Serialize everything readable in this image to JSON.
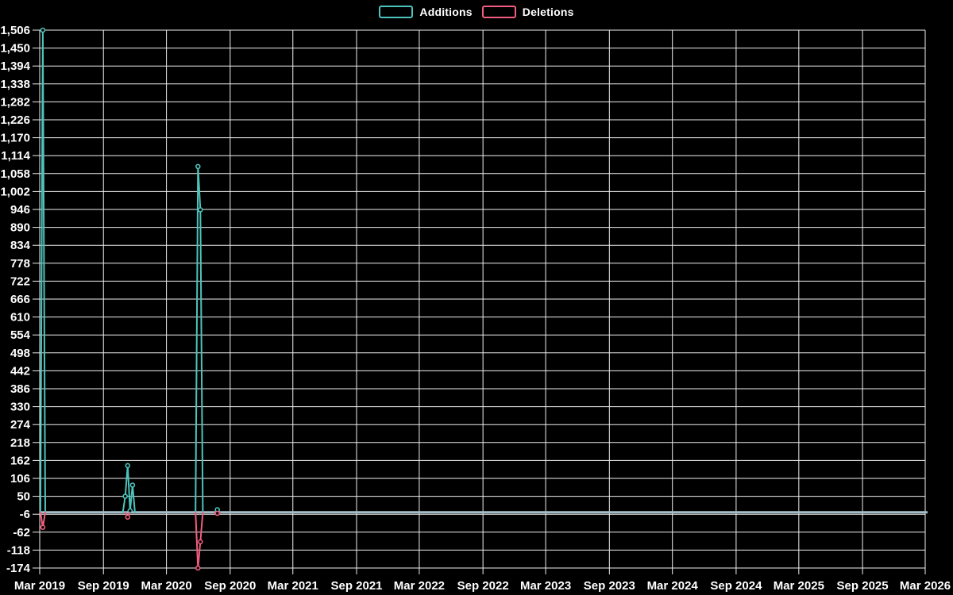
{
  "chart_data": {
    "type": "line",
    "title": "",
    "background": "#000000",
    "grid_color": "#EFEFEF",
    "text_color": "#FFFFFF",
    "zero_line_color": "#A4BFC8",
    "legend_position": "top-center",
    "x_axis": {
      "start_date": "2019-03-01",
      "end_date": "2026-03-01",
      "ticks": [
        {
          "label": "Mar 2019",
          "date": "2019-03-01"
        },
        {
          "label": "Sep 2019",
          "date": "2019-09-01"
        },
        {
          "label": "Mar 2020",
          "date": "2020-03-01"
        },
        {
          "label": "Sep 2020",
          "date": "2020-09-01"
        },
        {
          "label": "Mar 2021",
          "date": "2021-03-01"
        },
        {
          "label": "Sep 2021",
          "date": "2021-09-01"
        },
        {
          "label": "Mar 2022",
          "date": "2022-03-01"
        },
        {
          "label": "Sep 2022",
          "date": "2022-09-01"
        },
        {
          "label": "Mar 2023",
          "date": "2023-03-01"
        },
        {
          "label": "Sep 2023",
          "date": "2023-09-01"
        },
        {
          "label": "Mar 2024",
          "date": "2024-03-01"
        },
        {
          "label": "Sep 2024",
          "date": "2024-09-01"
        },
        {
          "label": "Mar 2025",
          "date": "2025-03-01"
        },
        {
          "label": "Sep 2025",
          "date": "2025-09-01"
        },
        {
          "label": "Mar 2026",
          "date": "2026-03-01"
        }
      ]
    },
    "y_axis": {
      "max": 1506,
      "min": -174,
      "step": 56,
      "tick_labels": [
        "1,506",
        "1,450",
        "1,394",
        "1,338",
        "1,282",
        "1,226",
        "1,170",
        "1,114",
        "1,058",
        "1,002",
        "946",
        "890",
        "834",
        "778",
        "722",
        "666",
        "610",
        "554",
        "498",
        "442",
        "386",
        "330",
        "274",
        "218",
        "162",
        "106",
        "50",
        "-6",
        "-62",
        "-118",
        "-174"
      ]
    },
    "series": [
      {
        "name": "Additions",
        "color": "#4CC4BC",
        "baseline": 0,
        "events": [
          {
            "date": "2019-03-10",
            "value": 1506
          },
          {
            "date": "2019-11-03",
            "value": 50
          },
          {
            "date": "2019-11-10",
            "value": 146
          },
          {
            "date": "2019-11-17",
            "value": 5
          },
          {
            "date": "2019-11-24",
            "value": 85
          },
          {
            "date": "2020-05-31",
            "value": 1080
          },
          {
            "date": "2020-06-07",
            "value": 945
          },
          {
            "date": "2020-07-26",
            "value": 8
          }
        ]
      },
      {
        "name": "Deletions",
        "color": "#F25C7E",
        "baseline": 0,
        "events": [
          {
            "date": "2019-03-10",
            "value": -47
          },
          {
            "date": "2019-11-10",
            "value": -15
          },
          {
            "date": "2020-05-31",
            "value": -174
          },
          {
            "date": "2020-06-07",
            "value": -92
          },
          {
            "date": "2020-07-26",
            "value": -3
          }
        ]
      }
    ]
  }
}
